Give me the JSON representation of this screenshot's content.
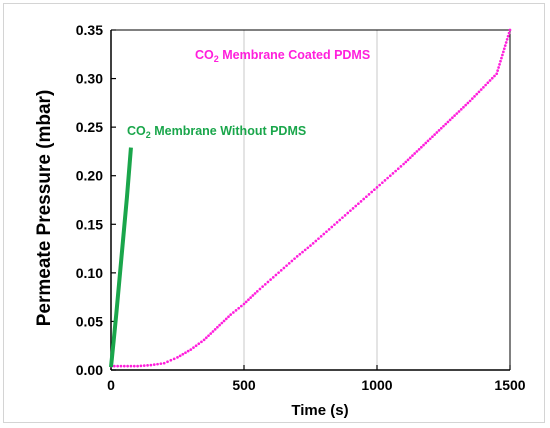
{
  "colors": {
    "coated": "#ff1fdc",
    "without": "#1aa64b",
    "grid": "#c8c8c8",
    "axis": "#000000"
  },
  "chart_data": {
    "type": "scatter",
    "xlabel": "Time (s)",
    "ylabel": "Permeate Pressure (mbar)",
    "xlim": [
      0,
      1500
    ],
    "ylim": [
      0,
      0.35
    ],
    "xticks": [
      "0",
      "500",
      "1000",
      "1500"
    ],
    "yticks": [
      "0.00",
      "0.05",
      "0.10",
      "0.15",
      "0.20",
      "0.25",
      "0.30",
      "0.35"
    ],
    "grid": "vertical",
    "annotations": [
      {
        "id": "coated",
        "prefix": "CO",
        "subscript": "2",
        "text": " Membrane Coated PDMS"
      },
      {
        "id": "without",
        "prefix": "CO",
        "subscript": "2",
        "text": " Membrane Without PDMS"
      }
    ],
    "series": [
      {
        "id": "coated",
        "style": "dotted-line",
        "x": [
          0,
          50,
          100,
          150,
          200,
          250,
          300,
          350,
          400,
          450,
          500,
          550,
          600,
          650,
          700,
          750,
          800,
          850,
          900,
          950,
          1000,
          1050,
          1100,
          1150,
          1200,
          1250,
          1300,
          1350,
          1400,
          1450,
          1500
        ],
        "y": [
          0.004,
          0.004,
          0.004,
          0.005,
          0.007,
          0.013,
          0.021,
          0.031,
          0.044,
          0.057,
          0.068,
          0.081,
          0.093,
          0.105,
          0.117,
          0.128,
          0.14,
          0.152,
          0.164,
          0.176,
          0.188,
          0.2,
          0.212,
          0.225,
          0.238,
          0.251,
          0.264,
          0.277,
          0.291,
          0.305,
          0.35
        ]
      },
      {
        "id": "without",
        "style": "thick-line",
        "x": [
          0,
          10,
          20,
          30,
          40,
          50,
          60,
          70,
          75
        ],
        "y": [
          0.003,
          0.03,
          0.058,
          0.088,
          0.118,
          0.148,
          0.178,
          0.212,
          0.229
        ]
      }
    ]
  }
}
